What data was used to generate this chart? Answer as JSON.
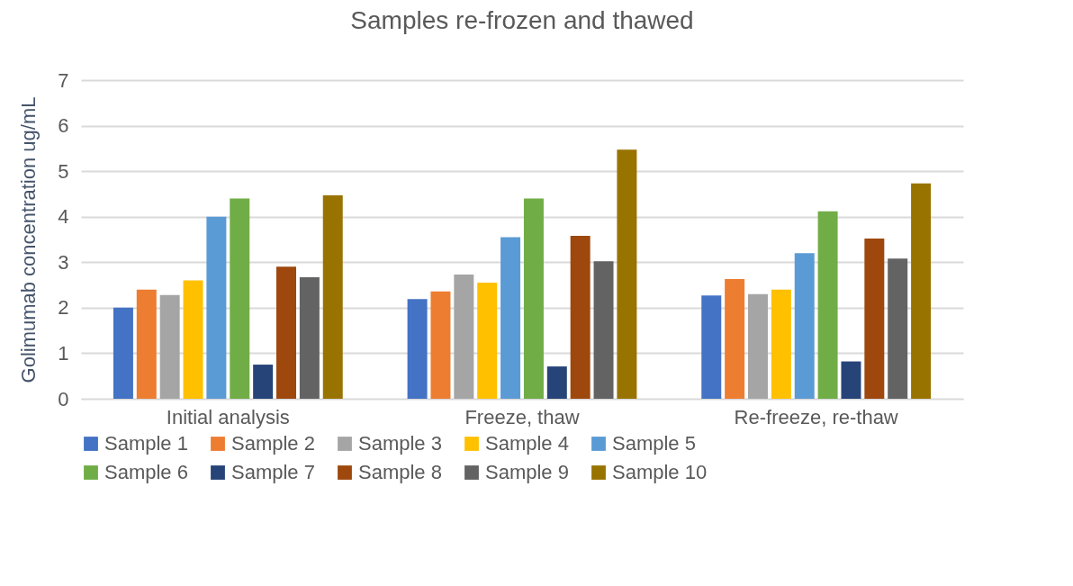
{
  "chart_data": {
    "type": "bar",
    "title": "Samples re-frozen and thawed",
    "ylabel": "Golimumab concentration ug/mL",
    "categories": [
      "Initial analysis",
      "Freeze, thaw",
      "Re-freeze, re-thaw"
    ],
    "series": [
      {
        "name": "Sample 1",
        "color": "#4472c4",
        "values": [
          2.0,
          2.19,
          2.27
        ]
      },
      {
        "name": "Sample 2",
        "color": "#ed7d31",
        "values": [
          2.4,
          2.36,
          2.63
        ]
      },
      {
        "name": "Sample 3",
        "color": "#a5a5a5",
        "values": [
          2.28,
          2.73,
          2.3
        ]
      },
      {
        "name": "Sample 4",
        "color": "#ffc000",
        "values": [
          2.6,
          2.55,
          2.4
        ]
      },
      {
        "name": "Sample 5",
        "color": "#5b9bd5",
        "values": [
          4.0,
          3.55,
          3.2
        ]
      },
      {
        "name": "Sample 6",
        "color": "#70ad47",
        "values": [
          4.4,
          4.4,
          4.12
        ]
      },
      {
        "name": "Sample 7",
        "color": "#264478",
        "values": [
          0.75,
          0.71,
          0.82
        ]
      },
      {
        "name": "Sample 8",
        "color": "#9e480e",
        "values": [
          2.9,
          3.58,
          3.52
        ]
      },
      {
        "name": "Sample 9",
        "color": "#636363",
        "values": [
          2.67,
          3.02,
          3.08
        ]
      },
      {
        "name": "Sample 10",
        "color": "#997300",
        "values": [
          4.47,
          5.47,
          4.73
        ]
      }
    ],
    "ylim": [
      0,
      7
    ],
    "yticks": [
      0,
      1,
      2,
      3,
      4,
      5,
      6,
      7
    ],
    "grid": "y",
    "legend": "bottom"
  }
}
